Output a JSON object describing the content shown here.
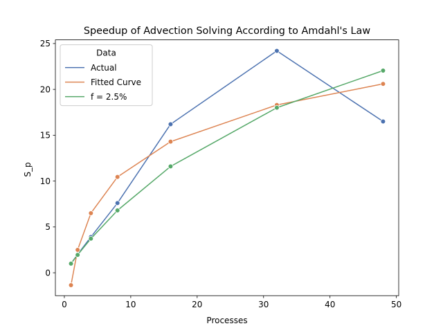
{
  "chart_data": {
    "type": "line",
    "title": "Speedup of Advection Solving According to Amdahl's Law",
    "xlabel": "Processes",
    "ylabel": "S_p",
    "xlim": [
      -1.35,
      50.35
    ],
    "ylim": [
      -2.5,
      25.4
    ],
    "xticks": [
      0,
      10,
      20,
      30,
      40,
      50
    ],
    "yticks": [
      0,
      5,
      10,
      15,
      20,
      25
    ],
    "grid": false,
    "legend": {
      "title": "Data",
      "position": "upper-left"
    },
    "series": [
      {
        "name": "Actual",
        "color": "#4c72b0",
        "x": [
          1,
          2,
          4,
          8,
          16,
          32,
          48
        ],
        "y": [
          1.0,
          2.0,
          3.9,
          7.6,
          16.2,
          24.2,
          16.5
        ]
      },
      {
        "name": "Fitted Curve",
        "color": "#dd8452",
        "x": [
          1,
          2,
          4,
          8,
          16,
          32,
          48
        ],
        "y": [
          -1.35,
          2.5,
          6.5,
          10.45,
          14.3,
          18.3,
          20.6
        ]
      },
      {
        "name": "f = 2.5%",
        "color": "#55a868",
        "x": [
          1,
          2,
          4,
          8,
          16,
          32,
          48
        ],
        "y": [
          1.0,
          1.95,
          3.72,
          6.8,
          11.6,
          18.0,
          22.05
        ]
      }
    ]
  }
}
